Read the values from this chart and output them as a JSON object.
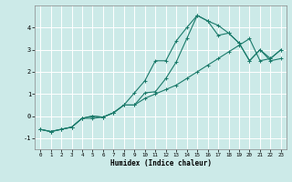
{
  "xlabel": "Humidex (Indice chaleur)",
  "bg_color": "#cceae8",
  "grid_color": "#ffffff",
  "line_color": "#1a7a6a",
  "xlim": [
    -0.5,
    23.5
  ],
  "ylim": [
    -1.5,
    5.0
  ],
  "yticks": [
    -1,
    0,
    1,
    2,
    3,
    4
  ],
  "xticks": [
    0,
    1,
    2,
    3,
    4,
    5,
    6,
    7,
    8,
    9,
    10,
    11,
    12,
    13,
    14,
    15,
    16,
    17,
    18,
    19,
    20,
    21,
    22,
    23
  ],
  "line1_x": [
    0,
    1,
    2,
    3,
    4,
    5,
    6,
    7,
    8,
    9,
    10,
    11,
    12,
    13,
    14,
    15,
    16,
    17,
    18,
    19,
    20,
    21,
    22,
    23
  ],
  "line1_y": [
    -0.6,
    -0.7,
    -0.6,
    -0.5,
    -0.1,
    0.0,
    -0.05,
    0.15,
    0.5,
    0.5,
    0.8,
    1.0,
    1.2,
    1.4,
    1.7,
    2.0,
    2.3,
    2.6,
    2.9,
    3.2,
    3.5,
    2.5,
    2.6,
    3.0
  ],
  "line2_x": [
    0,
    1,
    2,
    3,
    4,
    5,
    6,
    7,
    8,
    9,
    10,
    11,
    12,
    13,
    14,
    15,
    16,
    17,
    18,
    19,
    20,
    21,
    22,
    23
  ],
  "line2_y": [
    -0.6,
    -0.7,
    -0.6,
    -0.5,
    -0.1,
    0.0,
    -0.05,
    0.15,
    0.5,
    1.05,
    1.6,
    2.5,
    2.5,
    3.4,
    4.0,
    4.55,
    4.3,
    4.1,
    3.75,
    3.3,
    2.5,
    3.0,
    2.6,
    3.0
  ],
  "line3_x": [
    0,
    1,
    2,
    3,
    4,
    5,
    6,
    7,
    8,
    9,
    10,
    11,
    12,
    13,
    14,
    15,
    16,
    17,
    18,
    19,
    20,
    21,
    22,
    23
  ],
  "line3_y": [
    -0.6,
    -0.7,
    -0.6,
    -0.5,
    -0.1,
    -0.1,
    -0.05,
    0.15,
    0.5,
    0.5,
    1.05,
    1.1,
    1.7,
    2.45,
    3.5,
    4.55,
    4.3,
    3.65,
    3.75,
    3.3,
    2.5,
    3.0,
    2.5,
    2.6
  ]
}
